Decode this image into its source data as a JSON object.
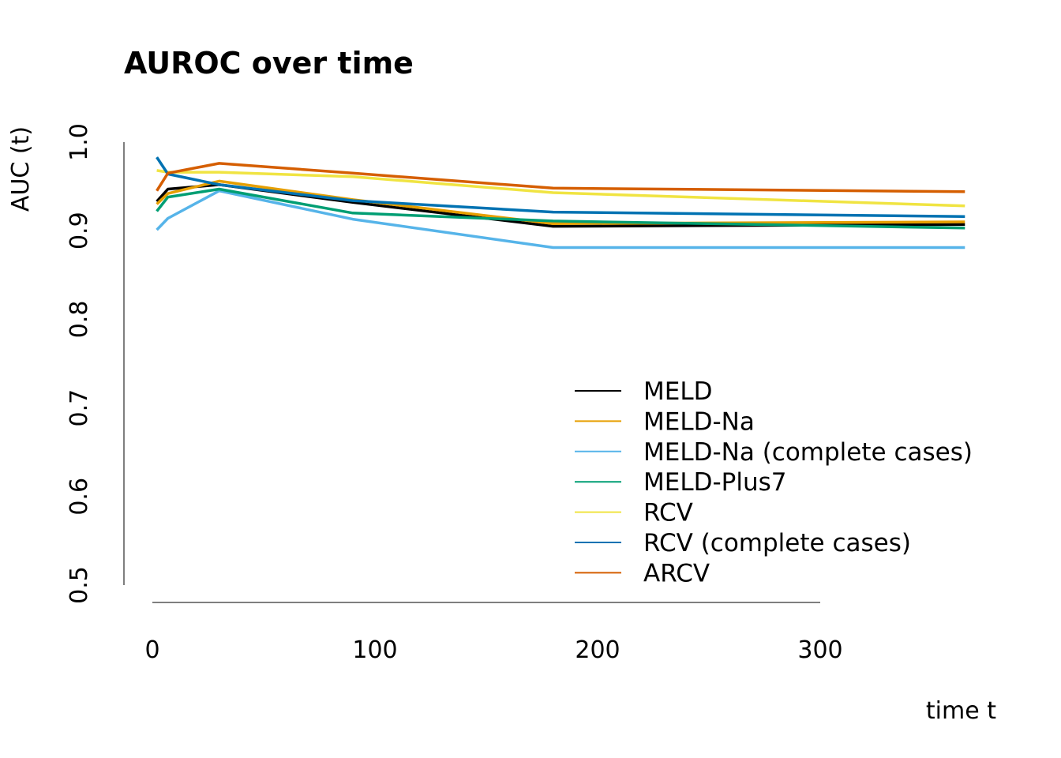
{
  "chart_data": {
    "type": "line",
    "title": "AUROC over time",
    "xlabel": "time t",
    "ylabel": "AUC (t)",
    "xlim": [
      0,
      365
    ],
    "ylim": [
      0.5,
      1.0
    ],
    "x_ticks": [
      "0",
      "100",
      "200",
      "300"
    ],
    "x_tick_values": [
      0,
      100,
      200,
      300
    ],
    "y_ticks": [
      "0.5",
      "0.6",
      "0.7",
      "0.8",
      "0.9",
      "1.0"
    ],
    "y_tick_values": [
      0.5,
      0.6,
      0.7,
      0.8,
      0.9,
      1.0
    ],
    "grid": false,
    "legend_position": "bottom-right",
    "series": [
      {
        "name": "MELD",
        "color": "#000000",
        "x": [
          2,
          7,
          30,
          90,
          180,
          365
        ],
        "y": [
          0.933,
          0.947,
          0.952,
          0.932,
          0.905,
          0.907
        ]
      },
      {
        "name": "MELD-Na",
        "color": "#E69F00",
        "x": [
          2,
          7,
          30,
          90,
          180,
          365
        ],
        "y": [
          0.93,
          0.942,
          0.956,
          0.935,
          0.908,
          0.91
        ]
      },
      {
        "name": "MELD-Na (complete cases)",
        "color": "#56B4E9",
        "x": [
          2,
          7,
          30,
          90,
          180,
          365
        ],
        "y": [
          0.901,
          0.914,
          0.945,
          0.913,
          0.881,
          0.881
        ]
      },
      {
        "name": "MELD-Plus7",
        "color": "#009E73",
        "x": [
          2,
          7,
          30,
          90,
          180,
          365
        ],
        "y": [
          0.922,
          0.938,
          0.947,
          0.92,
          0.911,
          0.903
        ]
      },
      {
        "name": "RCV",
        "color": "#F0E442",
        "x": [
          2,
          7,
          30,
          90,
          180,
          365
        ],
        "y": [
          0.968,
          0.966,
          0.966,
          0.961,
          0.943,
          0.928
        ]
      },
      {
        "name": "RCV (complete cases)",
        "color": "#0072B2",
        "x": [
          2,
          7,
          30,
          90,
          180,
          365
        ],
        "y": [
          0.983,
          0.964,
          0.952,
          0.934,
          0.921,
          0.916
        ]
      },
      {
        "name": "ARCV",
        "color": "#D55E00",
        "x": [
          2,
          7,
          30,
          90,
          180,
          365
        ],
        "y": [
          0.945,
          0.965,
          0.976,
          0.965,
          0.948,
          0.944
        ]
      }
    ]
  }
}
